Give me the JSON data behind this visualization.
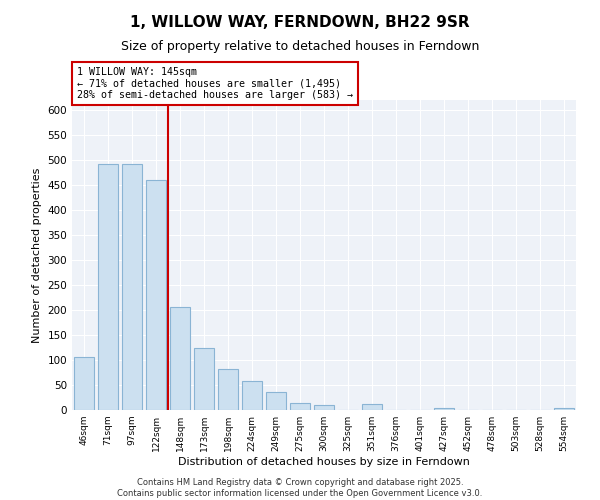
{
  "title": "1, WILLOW WAY, FERNDOWN, BH22 9SR",
  "subtitle": "Size of property relative to detached houses in Ferndown",
  "xlabel": "Distribution of detached houses by size in Ferndown",
  "ylabel": "Number of detached properties",
  "categories": [
    "46sqm",
    "71sqm",
    "97sqm",
    "122sqm",
    "148sqm",
    "173sqm",
    "198sqm",
    "224sqm",
    "249sqm",
    "275sqm",
    "300sqm",
    "325sqm",
    "351sqm",
    "376sqm",
    "401sqm",
    "427sqm",
    "452sqm",
    "478sqm",
    "503sqm",
    "528sqm",
    "554sqm"
  ],
  "values": [
    107,
    493,
    493,
    460,
    207,
    125,
    82,
    58,
    36,
    15,
    10,
    0,
    12,
    0,
    0,
    5,
    0,
    0,
    0,
    0,
    5
  ],
  "bar_color": "#cce0f0",
  "bar_edge_color": "#8ab4d4",
  "vline_color": "#cc0000",
  "vline_pos": 3.5,
  "annotation_line1": "1 WILLOW WAY: 145sqm",
  "annotation_line2": "← 71% of detached houses are smaller (1,495)",
  "annotation_line3": "28% of semi-detached houses are larger (583) →",
  "annotation_box_color": "#ffffff",
  "annotation_box_edge": "#cc0000",
  "ylim": [
    0,
    620
  ],
  "yticks": [
    0,
    50,
    100,
    150,
    200,
    250,
    300,
    350,
    400,
    450,
    500,
    550,
    600
  ],
  "footer_line1": "Contains HM Land Registry data © Crown copyright and database right 2025.",
  "footer_line2": "Contains public sector information licensed under the Open Government Licence v3.0.",
  "title_fontsize": 11,
  "subtitle_fontsize": 9,
  "axis_bg_color": "#eef2f8",
  "grid_color": "#ffffff"
}
